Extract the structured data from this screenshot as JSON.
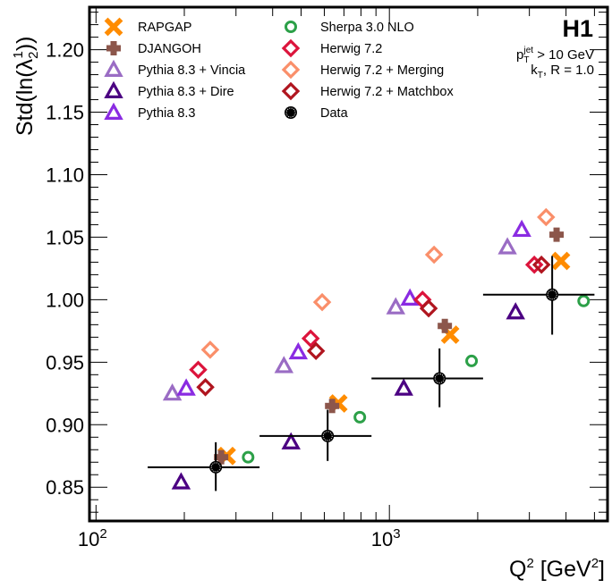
{
  "chart_data": {
    "type": "scatter",
    "title": "",
    "experiment_label": "H1",
    "annotations": {
      "cut_prefix": "p",
      "cut_sub": "T",
      "cut_sup": "jet",
      "cut_rest": " > 10 GeV",
      "algo_prefix": "k",
      "algo_sub": "T",
      "algo_rest": ", R = 1.0"
    },
    "xlabel": "Q",
    "xlabel_sup": "2",
    "xlabel_rest": " [GeV",
    "xlabel_sup2": "2",
    "xlabel_end": "]",
    "ylabel": "Std(ln(λ",
    "ylabel_sub": "2",
    "ylabel_sup": "1",
    "ylabel_end": "))",
    "xscale": "log",
    "xlim": [
      95,
      5540
    ],
    "ylim": [
      0.823,
      1.234
    ],
    "x_ticks": [
      {
        "value": 100,
        "base": "10",
        "exp": "2"
      },
      {
        "value": 1000,
        "base": "10",
        "exp": "3"
      }
    ],
    "y_ticks": [
      {
        "value": 0.85,
        "label": "0.85"
      },
      {
        "value": 0.9,
        "label": "0.90"
      },
      {
        "value": 0.95,
        "label": "0.95"
      },
      {
        "value": 1.0,
        "label": "1.00"
      },
      {
        "value": 1.05,
        "label": "1.05"
      },
      {
        "value": 1.1,
        "label": "1.10"
      },
      {
        "value": 1.15,
        "label": "1.15"
      },
      {
        "value": 1.2,
        "label": "1.20"
      }
    ],
    "grid": false,
    "legend_position": "top-left",
    "data": {
      "name": "Data",
      "color": "#000000",
      "marker": "data-circle",
      "points": [
        {
          "x": 256,
          "y": 0.866,
          "x_low": 150,
          "x_high": 361,
          "err_up": 0.02,
          "err_down": 0.019
        },
        {
          "x": 616,
          "y": 0.891,
          "x_low": 361,
          "x_high": 869,
          "err_up": 0.021,
          "err_down": 0.02
        },
        {
          "x": 1482,
          "y": 0.937,
          "x_low": 869,
          "x_high": 2086,
          "err_up": 0.024,
          "err_down": 0.023
        },
        {
          "x": 3588,
          "y": 1.004,
          "x_low": 2086,
          "x_high": 5000,
          "err_up": 0.031,
          "err_down": 0.032
        }
      ]
    },
    "series": [
      {
        "name": "RAPGAP",
        "color": "#ff8c00",
        "marker": "x-cross",
        "x": [
          279,
          670,
          1611,
          3846
        ],
        "y": [
          0.875,
          0.917,
          0.972,
          1.031
        ]
      },
      {
        "name": "DJANGOH",
        "color": "#8c564b",
        "marker": "plus",
        "x": [
          267,
          638,
          1545,
          3714
        ],
        "y": [
          0.874,
          0.915,
          0.979,
          1.052
        ]
      },
      {
        "name": "Pythia 8.3 + Vincia",
        "color": "#9a6cc4",
        "marker": "open-triangle",
        "x": [
          182,
          437,
          1051,
          2525
        ],
        "y": [
          0.925,
          0.947,
          0.994,
          1.042
        ]
      },
      {
        "name": "Pythia 8.3 + Dire",
        "color": "#4b0082",
        "marker": "open-triangle",
        "x": [
          195,
          462,
          1119,
          2692
        ],
        "y": [
          0.854,
          0.886,
          0.929,
          0.99
        ]
      },
      {
        "name": "Pythia 8.3",
        "color": "#8a2be2",
        "marker": "open-triangle",
        "x": [
          203,
          489,
          1175,
          2826
        ],
        "y": [
          0.929,
          0.958,
          1.001,
          1.056
        ]
      },
      {
        "name": "Sherpa 3.0 NLO",
        "color": "#2ca048",
        "marker": "open-circle",
        "x": [
          330,
          793,
          1906,
          4592
        ],
        "y": [
          0.874,
          0.906,
          0.951,
          0.999
        ]
      },
      {
        "name": "Herwig 7.2",
        "color": "#dc143c",
        "marker": "open-diamond",
        "x": [
          223,
          539,
          1297,
          3119
        ],
        "y": [
          0.944,
          0.969,
          1.0,
          1.028
        ]
      },
      {
        "name": "Herwig 7.2 + Merging",
        "color": "#fa8f6a",
        "marker": "open-diamond",
        "x": [
          245,
          590,
          1420,
          3420
        ],
        "y": [
          0.96,
          0.998,
          1.036,
          1.066
        ]
      },
      {
        "name": "Herwig 7.2 + Matchbox",
        "color": "#b0151f",
        "marker": "open-diamond",
        "x": [
          236,
          562,
          1361,
          3299
        ],
        "y": [
          0.93,
          0.959,
          0.993,
          1.028
        ]
      }
    ],
    "legend": [
      {
        "label": "RAPGAP",
        "series": 0
      },
      {
        "label": "DJANGOH",
        "series": 1
      },
      {
        "label": "Pythia 8.3 + Vincia",
        "series": 2
      },
      {
        "label": "Pythia 8.3 + Dire",
        "series": 3
      },
      {
        "label": "Pythia 8.3",
        "series": 4
      },
      {
        "label": "Sherpa 3.0 NLO",
        "series": 5
      },
      {
        "label": "Herwig 7.2",
        "series": 6
      },
      {
        "label": "Herwig 7.2 + Merging",
        "series": 7
      },
      {
        "label": "Herwig 7.2 + Matchbox",
        "series": 8
      },
      {
        "label": "Data",
        "series": "data"
      }
    ]
  }
}
